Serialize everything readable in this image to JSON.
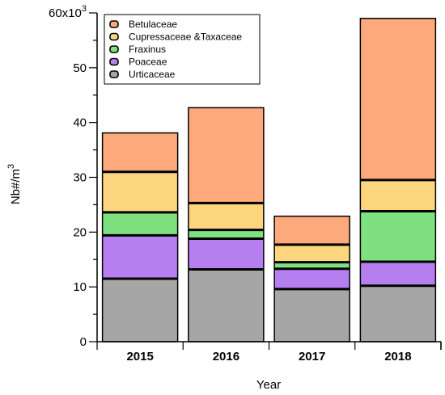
{
  "chart_data": {
    "type": "bar",
    "stacked": true,
    "categories": [
      "2015",
      "2016",
      "2017",
      "2018"
    ],
    "xlabel": "Year",
    "ylabel": "Nb#/m",
    "ylabel_superscript": "3",
    "ylim": [
      0,
      60
    ],
    "y_ticks": [
      0,
      10,
      20,
      30,
      40,
      50,
      60
    ],
    "y_tick_labels": [
      "0",
      "10",
      "20",
      "30",
      "40",
      "50",
      "60x10"
    ],
    "y_top_exponent": "3",
    "legend_position": "top-left",
    "series": [
      {
        "name": "Urticaceae",
        "color": "#a6a6a6",
        "values": [
          11.5,
          13.2,
          9.6,
          10.2
        ]
      },
      {
        "name": "Poaceae",
        "color": "#b57ff0",
        "values": [
          7.9,
          5.6,
          3.7,
          4.4
        ]
      },
      {
        "name": "Fraxinus",
        "color": "#7ee07e",
        "values": [
          4.2,
          1.6,
          1.2,
          9.2
        ]
      },
      {
        "name": "Cupressaceae &Taxaceae",
        "color": "#fdd57e",
        "values": [
          7.4,
          4.9,
          3.2,
          5.7
        ]
      },
      {
        "name": "Betulaceae",
        "color": "#fda97c",
        "values": [
          7.1,
          17.4,
          5.2,
          29.5
        ]
      }
    ],
    "legend_order": [
      "Betulaceae",
      "Cupressaceae &Taxaceae",
      "Fraxinus",
      "Poaceae",
      "Urticaceae"
    ]
  }
}
